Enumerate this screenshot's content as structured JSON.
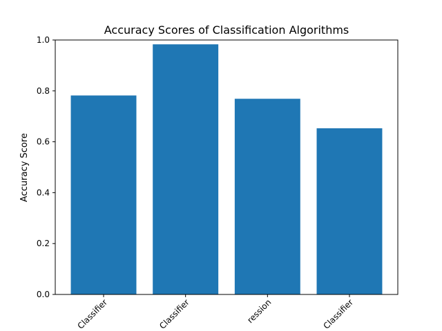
{
  "chart_data": {
    "type": "bar",
    "title": "Accuracy Scores of Classification Algorithms",
    "xlabel": "",
    "ylabel": "Accuracy Score",
    "ylim": [
      0,
      1.0
    ],
    "yticks": [
      0.0,
      0.2,
      0.4,
      0.6,
      0.8,
      1.0
    ],
    "ytick_labels": [
      "0.0",
      "0.2",
      "0.4",
      "0.6",
      "0.8",
      "1.0"
    ],
    "categories": [
      "Classifier",
      "Classifier",
      "ression",
      "Classifier"
    ],
    "values": [
      0.782,
      0.983,
      0.769,
      0.653
    ],
    "bar_color": "#1f77b4",
    "grid": false,
    "xtick_rotation_deg": 45
  }
}
